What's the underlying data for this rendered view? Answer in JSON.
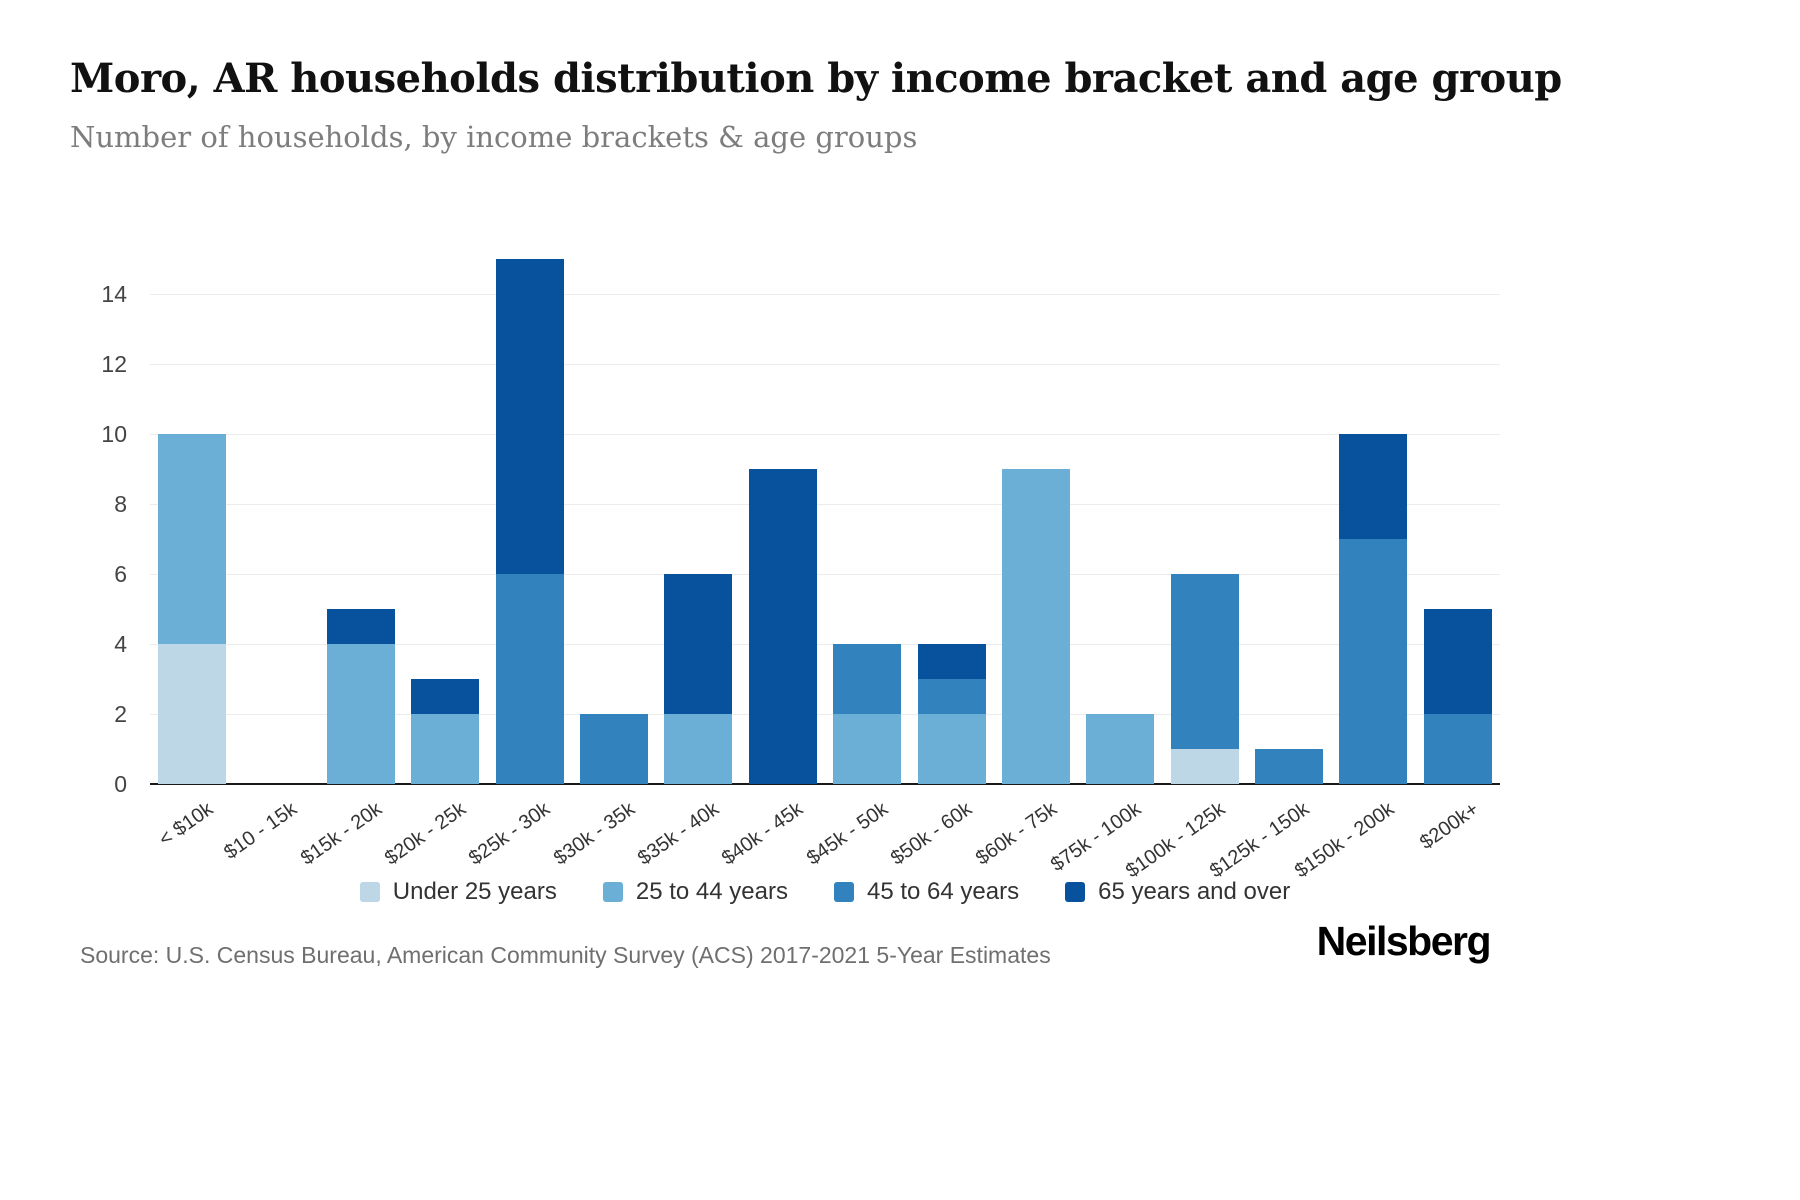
{
  "header": {
    "title": "Moro, AR households distribution by income bracket and age group",
    "subtitle": "Number of households, by income brackets & age groups"
  },
  "footer": {
    "source": "Source: U.S. Census Bureau, American Community Survey (ACS) 2017-2021 5-Year Estimates",
    "brand": "Neilsberg"
  },
  "chart_data": {
    "type": "bar",
    "stacked": true,
    "title": "Moro, AR households distribution by income bracket and age group",
    "xlabel": "",
    "ylabel": "",
    "ylim": [
      0,
      15
    ],
    "yticks": [
      0,
      2,
      4,
      6,
      8,
      10,
      12,
      14
    ],
    "grid": true,
    "legend_position": "bottom",
    "categories": [
      "< $10k",
      "$10 - 15k",
      "$15k - 20k",
      "$20k - 25k",
      "$25k - 30k",
      "$30k - 35k",
      "$35k - 40k",
      "$40k - 45k",
      "$45k - 50k",
      "$50k - 60k",
      "$60k - 75k",
      "$75k - 100k",
      "$100k - 125k",
      "$125k - 150k",
      "$150k - 200k",
      "$200k+"
    ],
    "series": [
      {
        "name": "Under 25 years",
        "color": "#bdd7e7",
        "values": [
          4,
          0,
          0,
          0,
          0,
          0,
          0,
          0,
          0,
          0,
          0,
          0,
          1,
          0,
          0,
          0
        ]
      },
      {
        "name": "25 to 44 years",
        "color": "#6baed6",
        "values": [
          6,
          0,
          4,
          2,
          0,
          0,
          2,
          0,
          2,
          2,
          9,
          2,
          0,
          0,
          0,
          0
        ]
      },
      {
        "name": "45 to 64 years",
        "color": "#3182bd",
        "values": [
          0,
          0,
          0,
          0,
          6,
          2,
          0,
          0,
          2,
          1,
          0,
          0,
          5,
          1,
          7,
          2
        ]
      },
      {
        "name": "65 years and over",
        "color": "#08519c",
        "values": [
          0,
          0,
          1,
          1,
          9,
          0,
          4,
          9,
          0,
          1,
          0,
          0,
          0,
          0,
          3,
          3
        ]
      }
    ],
    "totals": [
      10,
      0,
      5,
      3,
      15,
      2,
      6,
      9,
      4,
      4,
      9,
      2,
      6,
      1,
      10,
      5
    ]
  }
}
